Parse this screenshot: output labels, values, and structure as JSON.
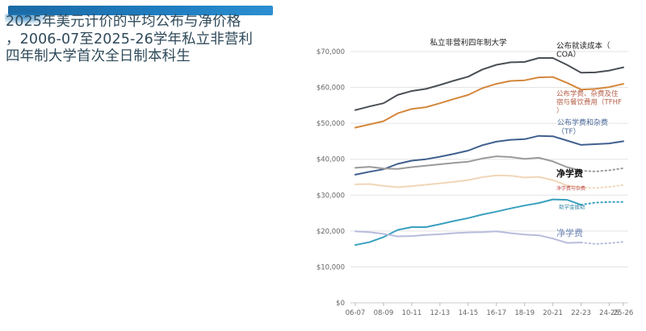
{
  "page": {
    "title_lines": [
      "2025年美元计价的平均公布与净价格",
      "，2006-07至2025-26学年私立非营利",
      "四年制大学首次全日制本科生"
    ]
  },
  "chart_data": {
    "type": "line",
    "title": "私立非营利四年制大学",
    "xlabel": "",
    "ylabel": "",
    "ylim": [
      0,
      70000
    ],
    "yticks": [
      0,
      10000,
      20000,
      30000,
      40000,
      50000,
      60000,
      70000
    ],
    "ytick_labels": [
      "$0",
      "$10,000",
      "$20,000",
      "$30,000",
      "$40,000",
      "$50,000",
      "$60,000",
      "$70,000"
    ],
    "grid": true,
    "x": [
      "06-07",
      "07-08",
      "08-09",
      "09-10",
      "10-11",
      "11-12",
      "12-13",
      "13-14",
      "14-15",
      "15-16",
      "16-17",
      "17-18",
      "18-19",
      "19-20",
      "20-21",
      "21-22",
      "22-23",
      "23-24",
      "24-25",
      "25-26"
    ],
    "xtick_labels": [
      "06-07",
      "08-09",
      "10-11",
      "12-13",
      "14-15",
      "16-17",
      "18-19",
      "20-21",
      "22-23",
      "24-25",
      "25-26"
    ],
    "projected_from_index": 16,
    "series": [
      {
        "name": "公布就读成本（COA）",
        "label_lines": [
          "公布就读成本（",
          "COA）"
        ],
        "color": "#4a4f55",
        "label_color": "#1f1f1f",
        "dotted_projection": false,
        "values": [
          53700,
          54700,
          55600,
          57900,
          59000,
          59600,
          60700,
          61900,
          63000,
          65000,
          66300,
          67000,
          67100,
          68200,
          68200,
          66300,
          64100,
          64200,
          64700,
          65600
        ]
      },
      {
        "name": "公布学费、杂费及住宿与餐饮费用（TFHF）",
        "label_lines": [
          "公布学费、杂费及住",
          "宿与餐饮费用（TFHF",
          "）"
        ],
        "color": "#d4873c",
        "label_color": "#b5604a",
        "dotted_projection": false,
        "values": [
          48800,
          49700,
          50600,
          52800,
          54000,
          54500,
          55600,
          56800,
          57900,
          59800,
          61000,
          61800,
          62000,
          62800,
          62900,
          61300,
          59400,
          59600,
          60100,
          61000
        ]
      },
      {
        "name": "公布学费和杂费（TF）",
        "label_lines": [
          "公布学费和杂费",
          "（TF）"
        ],
        "color": "#3f5f8f",
        "label_color": "#4a6a9a",
        "dotted_projection": false,
        "values": [
          35700,
          36500,
          37200,
          38700,
          39600,
          40000,
          40700,
          41500,
          42400,
          43900,
          44900,
          45400,
          45600,
          46500,
          46400,
          45200,
          44000,
          44200,
          44400,
          45000
        ]
      },
      {
        "name": "净学费（学费、杂费及食宿）",
        "label_lines": [
          "净学费"
        ],
        "color": "#9a9a9a",
        "label_color": "#111111",
        "dotted_projection": true,
        "values": [
          37600,
          37900,
          37400,
          37300,
          37800,
          38200,
          38600,
          39000,
          39300,
          40200,
          40800,
          40600,
          40100,
          40400,
          39400,
          37800,
          36800,
          36600,
          36900,
          37500
        ]
      },
      {
        "name": "净学费与杂费",
        "label_lines": [
          "净学费与杂费"
        ],
        "color": "#f0d6b8",
        "label_color": "#c0504d",
        "dotted_projection": true,
        "values": [
          33000,
          33100,
          32600,
          32200,
          32500,
          32900,
          33300,
          33700,
          34200,
          35000,
          35500,
          35400,
          34900,
          35100,
          34200,
          32700,
          32100,
          32000,
          32300,
          32800
        ]
      },
      {
        "name": "助学金援助",
        "label_lines": [
          "助学金援助"
        ],
        "color": "#3aa0bf",
        "label_color": "#3a8aa8",
        "dotted_projection": true,
        "values": [
          16100,
          16900,
          18300,
          20300,
          21100,
          21100,
          21900,
          22800,
          23600,
          24600,
          25400,
          26300,
          27100,
          27800,
          28800,
          28700,
          27300,
          27900,
          28100,
          28100
        ]
      },
      {
        "name": "净学费（学费和杂费）",
        "label_lines": [
          "净学费"
        ],
        "color": "#b8bcdc",
        "label_color": "#6f86b4",
        "dotted_projection": true,
        "values": [
          19900,
          19700,
          19200,
          18500,
          18600,
          18900,
          19100,
          19400,
          19600,
          19700,
          19900,
          19400,
          19000,
          18800,
          17900,
          16700,
          16800,
          16400,
          16600,
          17000
        ]
      }
    ]
  }
}
